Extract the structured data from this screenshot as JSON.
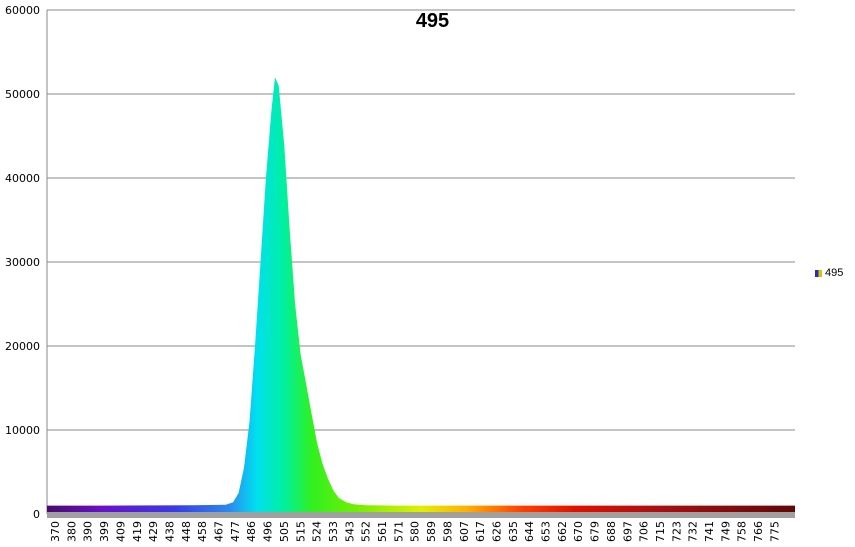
{
  "chart_data": {
    "type": "area",
    "title": "495",
    "xlabel": "",
    "ylabel": "",
    "ylim": [
      0,
      60000
    ],
    "yticks": [
      0,
      10000,
      20000,
      30000,
      40000,
      50000,
      60000
    ],
    "xlim": [
      370,
      780
    ],
    "xtick_labels": [
      "370",
      "380",
      "390",
      "399",
      "409",
      "419",
      "429",
      "438",
      "448",
      "458",
      "467",
      "477",
      "486",
      "496",
      "505",
      "515",
      "524",
      "533",
      "543",
      "552",
      "561",
      "571",
      "580",
      "589",
      "598",
      "607",
      "617",
      "626",
      "635",
      "644",
      "653",
      "662",
      "670",
      "679",
      "688",
      "697",
      "706",
      "715",
      "723",
      "732",
      "741",
      "749",
      "758",
      "766",
      "775"
    ],
    "grid": "horizontal",
    "legend_position": "right",
    "series": [
      {
        "name": "495",
        "x": [
          370,
          400,
          450,
          468,
          472,
          475,
          478,
          481,
          484,
          487,
          490,
          493,
          495,
          497,
          500,
          503,
          506,
          509,
          512,
          515,
          518,
          521,
          524,
          527,
          530,
          534,
          538,
          545,
          560,
          600,
          700,
          780
        ],
        "y": [
          1000,
          1000,
          1050,
          1100,
          1400,
          2500,
          5500,
          11000,
          20000,
          30000,
          40000,
          48000,
          52000,
          51000,
          44000,
          34000,
          25000,
          19000,
          15500,
          12000,
          8500,
          6000,
          4200,
          2800,
          1900,
          1400,
          1150,
          1050,
          1000,
          1000,
          1000,
          1000
        ]
      }
    ],
    "fill": "visible-spectrum gradient by wavelength"
  }
}
